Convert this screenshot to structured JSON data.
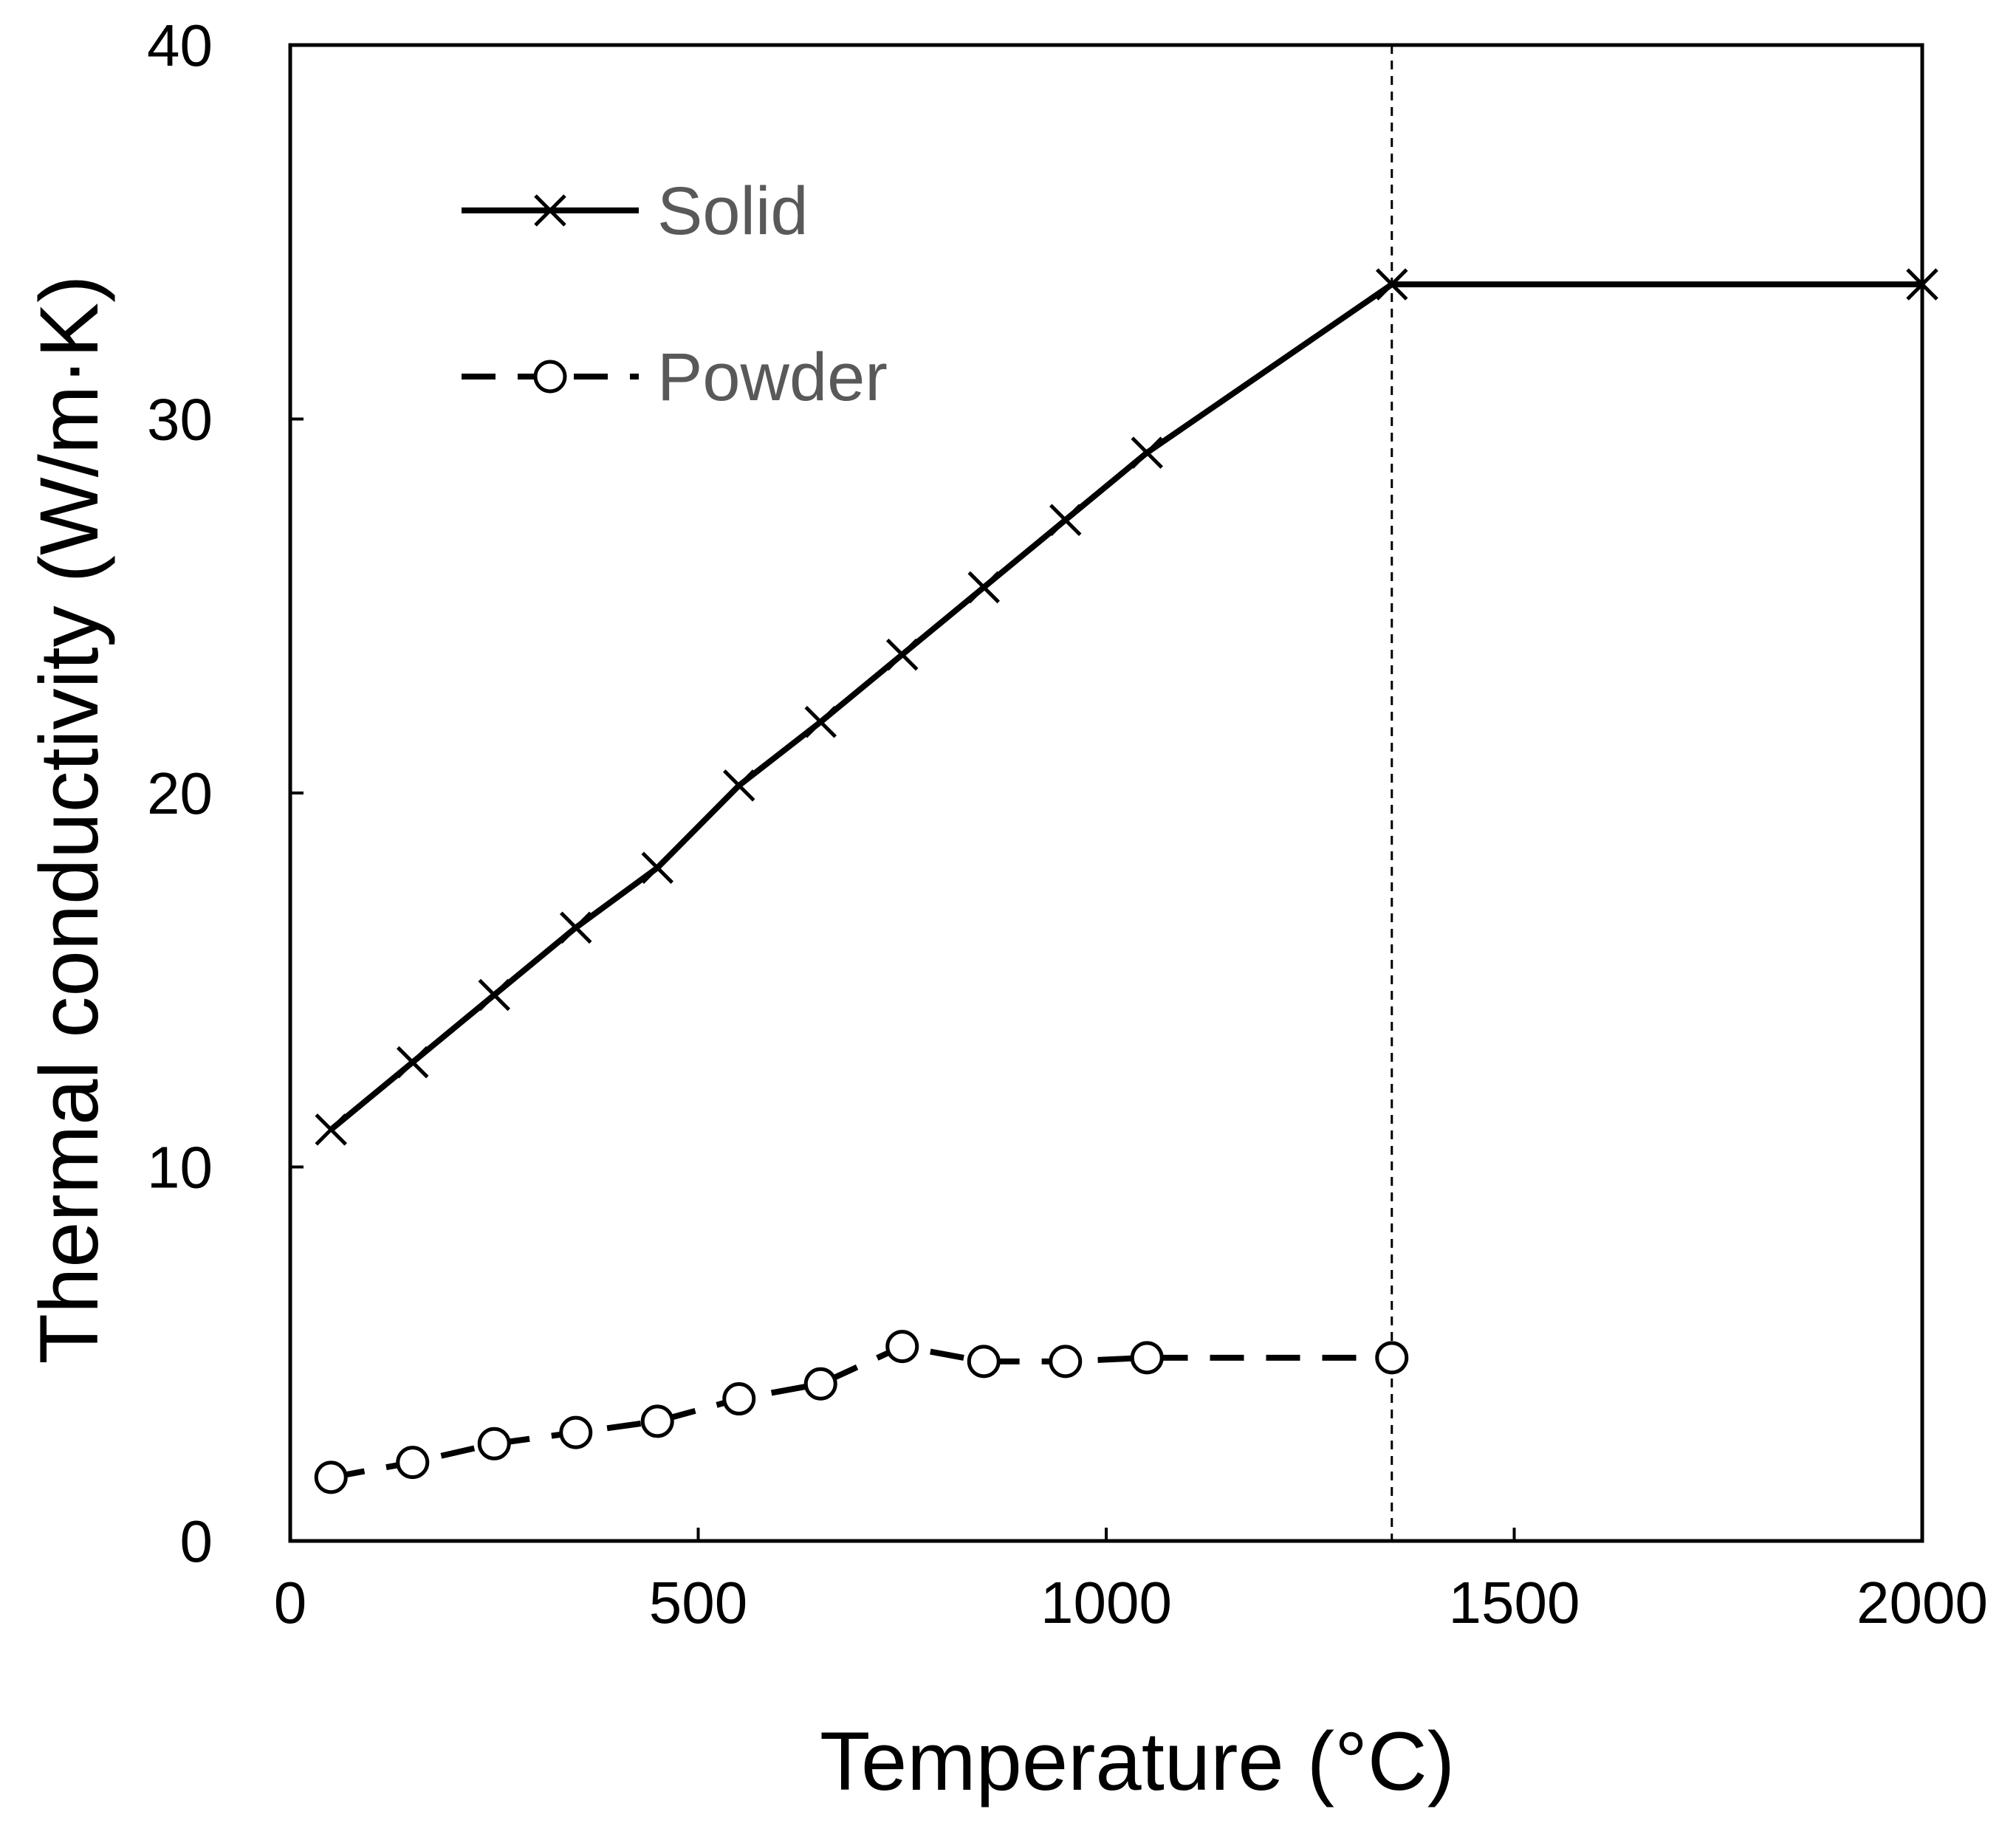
{
  "chart_data": {
    "type": "line",
    "xlabel": "Temperature (°C)",
    "ylabel": "Thermal conductivity (W/m·K)",
    "xlim": [
      0,
      2000
    ],
    "ylim": [
      0,
      40
    ],
    "xticks": [
      "0",
      "500",
      "1000",
      "1500",
      "2000"
    ],
    "yticks": [
      "0",
      "10",
      "20",
      "30",
      "40"
    ],
    "grid": false,
    "legend_position": "top-left",
    "reference_line": {
      "x": 1350,
      "style": "dashed"
    },
    "series": [
      {
        "name": "Solid",
        "marker": "x",
        "line": "solid",
        "color": "#000000",
        "points": [
          [
            50,
            11.0
          ],
          [
            150,
            12.8
          ],
          [
            250,
            14.6
          ],
          [
            350,
            16.4
          ],
          [
            450,
            18.0
          ],
          [
            550,
            20.2
          ],
          [
            650,
            21.9
          ],
          [
            750,
            23.7
          ],
          [
            850,
            25.5
          ],
          [
            950,
            27.3
          ],
          [
            1050,
            29.1
          ],
          [
            1350,
            33.6
          ],
          [
            2000,
            33.6
          ]
        ]
      },
      {
        "name": "Powder",
        "marker": "circle",
        "line": "dashed",
        "color": "#000000",
        "points": [
          [
            50,
            1.7
          ],
          [
            150,
            2.1
          ],
          [
            250,
            2.6
          ],
          [
            350,
            2.9
          ],
          [
            450,
            3.2
          ],
          [
            550,
            3.8
          ],
          [
            650,
            4.2
          ],
          [
            750,
            5.2
          ],
          [
            850,
            4.8
          ],
          [
            950,
            4.8
          ],
          [
            1050,
            4.9
          ],
          [
            1350,
            4.9
          ]
        ]
      }
    ]
  }
}
